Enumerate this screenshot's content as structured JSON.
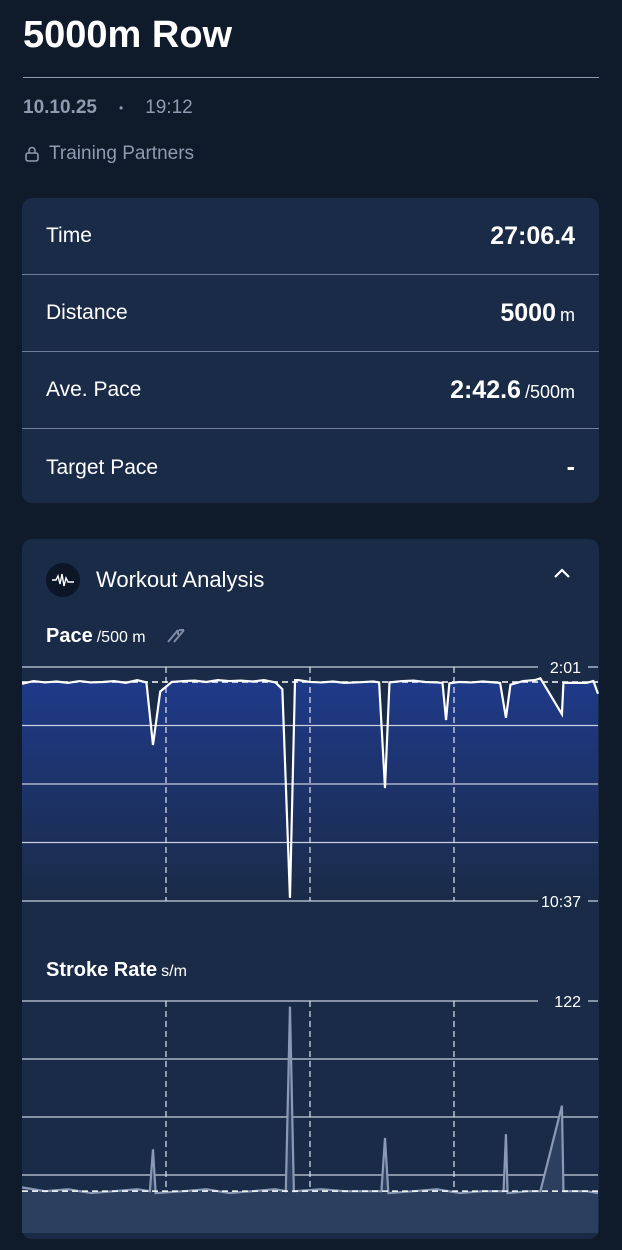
{
  "header": {
    "title": "5000m Row",
    "date": "10.10.25",
    "separator": "•",
    "time": "19:12",
    "privacy": "Training Partners",
    "privacy_icon": "lock-icon"
  },
  "stats": [
    {
      "label": "Time",
      "value": "27:06.4",
      "unit": ""
    },
    {
      "label": "Distance",
      "value": "5000",
      "unit": "m"
    },
    {
      "label": "Ave. Pace",
      "value": "2:42.6",
      "unit": "/500m"
    },
    {
      "label": "Target Pace",
      "value": "-",
      "unit": ""
    }
  ],
  "analysis": {
    "title": "Workout Analysis",
    "icon": "waveform-icon",
    "collapse_icon": "chevron-up-icon"
  },
  "colors": {
    "background": "#0f1a2a",
    "card": "#1a2b47",
    "pace_fill": "#1f3a80",
    "stroke_line": "#8a9ab5"
  },
  "chart_data": [
    {
      "type": "area",
      "title": "Pace",
      "unit": "/500 m",
      "icon": "swap-icon",
      "x_unit": "m",
      "xlim": [
        0,
        5000
      ],
      "y_tick_labels": [
        "2:01",
        "10:37"
      ],
      "ylim_seconds": [
        121,
        637
      ],
      "y_inverted": true,
      "grid": true,
      "vertical_markers": [
        1250,
        2500,
        3750
      ],
      "average_line_seconds": 154,
      "points": [
        [
          0,
          158
        ],
        [
          100,
          152
        ],
        [
          200,
          155
        ],
        [
          300,
          153
        ],
        [
          400,
          156
        ],
        [
          500,
          152
        ],
        [
          600,
          155
        ],
        [
          700,
          154
        ],
        [
          800,
          152
        ],
        [
          900,
          156
        ],
        [
          1000,
          150
        ],
        [
          1080,
          155
        ],
        [
          1137,
          293
        ],
        [
          1200,
          175
        ],
        [
          1300,
          154
        ],
        [
          1400,
          152
        ],
        [
          1500,
          151
        ],
        [
          1600,
          154
        ],
        [
          1700,
          150
        ],
        [
          1800,
          152
        ],
        [
          1900,
          151
        ],
        [
          2000,
          153
        ],
        [
          2100,
          150
        ],
        [
          2200,
          155
        ],
        [
          2260,
          170
        ],
        [
          2326,
          630
        ],
        [
          2370,
          150
        ],
        [
          2400,
          150
        ],
        [
          2500,
          154
        ],
        [
          2600,
          155
        ],
        [
          2700,
          153
        ],
        [
          2800,
          156
        ],
        [
          2900,
          155
        ],
        [
          3050,
          153
        ],
        [
          3100,
          155
        ],
        [
          3151,
          388
        ],
        [
          3190,
          155
        ],
        [
          3300,
          152
        ],
        [
          3400,
          151
        ],
        [
          3500,
          154
        ],
        [
          3600,
          155
        ],
        [
          3650,
          156
        ],
        [
          3681,
          238
        ],
        [
          3710,
          157
        ],
        [
          3800,
          154
        ],
        [
          3900,
          155
        ],
        [
          4000,
          153
        ],
        [
          4150,
          156
        ],
        [
          4201,
          233
        ],
        [
          4240,
          160
        ],
        [
          4350,
          152
        ],
        [
          4450,
          150
        ],
        [
          4500,
          146
        ],
        [
          4687,
          225
        ],
        [
          4700,
          156
        ],
        [
          4800,
          156
        ],
        [
          4900,
          156
        ],
        [
          4960,
          152
        ],
        [
          5000,
          180
        ]
      ]
    },
    {
      "type": "area",
      "title": "Stroke Rate",
      "unit": "s/m",
      "x_unit": "m",
      "xlim": [
        0,
        5000
      ],
      "y_tick_labels": [
        "122"
      ],
      "ylim": [
        0,
        122
      ],
      "grid": true,
      "vertical_markers": [
        1250,
        2500,
        3750
      ],
      "average_line": 22,
      "points": [
        [
          0,
          24
        ],
        [
          200,
          22
        ],
        [
          400,
          23
        ],
        [
          600,
          21
        ],
        [
          800,
          22
        ],
        [
          1000,
          23
        ],
        [
          1110,
          22
        ],
        [
          1137,
          44
        ],
        [
          1160,
          21
        ],
        [
          1400,
          22
        ],
        [
          1600,
          23
        ],
        [
          1800,
          21
        ],
        [
          2000,
          22
        ],
        [
          2200,
          23
        ],
        [
          2290,
          22
        ],
        [
          2326,
          119
        ],
        [
          2360,
          22
        ],
        [
          2600,
          23
        ],
        [
          2800,
          22
        ],
        [
          3000,
          22
        ],
        [
          3120,
          22
        ],
        [
          3151,
          50
        ],
        [
          3180,
          21
        ],
        [
          3400,
          22
        ],
        [
          3600,
          23
        ],
        [
          3800,
          21
        ],
        [
          4000,
          22
        ],
        [
          4180,
          22
        ],
        [
          4201,
          52
        ],
        [
          4215,
          21
        ],
        [
          4400,
          22
        ],
        [
          4500,
          22
        ],
        [
          4687,
          67
        ],
        [
          4700,
          22
        ],
        [
          4900,
          22
        ],
        [
          5000,
          21
        ]
      ]
    }
  ]
}
